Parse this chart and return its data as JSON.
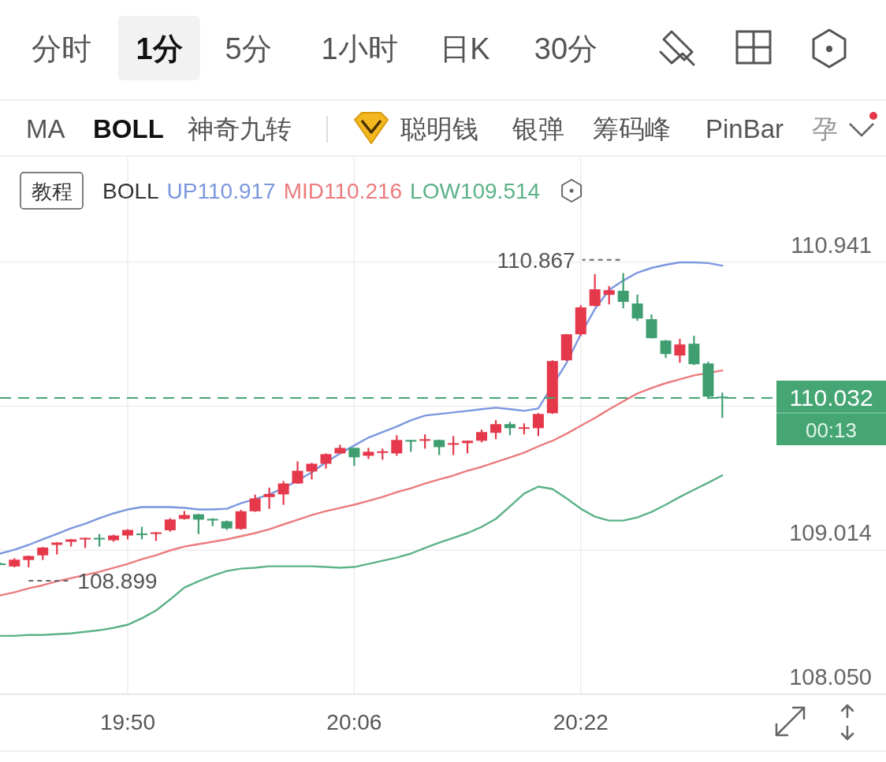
{
  "chart_data": {
    "type": "candlestick",
    "x": [
      19.6833,
      19.7,
      19.7167,
      19.7333,
      19.75,
      19.7667,
      19.7833,
      19.8,
      19.8167,
      19.8333,
      19.85,
      19.8667,
      19.8833,
      19.9,
      19.9167,
      19.9333,
      19.95,
      19.9667,
      19.9833,
      20.0,
      20.0167,
      20.0333,
      20.05,
      20.0667,
      20.0833,
      20.1,
      20.1167,
      20.1333,
      20.15,
      20.1667,
      20.1833,
      20.2,
      20.2167,
      20.2333,
      20.25,
      20.2667,
      20.2833,
      20.3,
      20.3167,
      20.3333,
      20.35,
      20.3667,
      20.3833,
      20.4,
      20.4167,
      20.4333,
      20.45,
      20.4667,
      20.4833,
      20.5,
      20.5167,
      20.5333
    ],
    "ohlc": [
      [
        108.925,
        108.93,
        108.915,
        108.918
      ],
      [
        108.905,
        108.96,
        108.9,
        108.95
      ],
      [
        108.948,
        108.978,
        108.899,
        108.975
      ],
      [
        108.979,
        109.035,
        108.948,
        109.031
      ],
      [
        109.049,
        109.067,
        108.985,
        109.065
      ],
      [
        109.07,
        109.088,
        109.038,
        109.086
      ],
      [
        109.086,
        109.098,
        109.028,
        109.096
      ],
      [
        109.096,
        109.122,
        109.038,
        109.093
      ],
      [
        109.08,
        109.117,
        109.07,
        109.112
      ],
      [
        109.112,
        109.154,
        109.086,
        109.149
      ],
      [
        109.125,
        109.17,
        109.086,
        109.12
      ],
      [
        109.123,
        109.135,
        109.075,
        109.133
      ],
      [
        109.147,
        109.228,
        109.138,
        109.219
      ],
      [
        109.223,
        109.276,
        109.218,
        109.249
      ],
      [
        109.254,
        109.256,
        109.122,
        109.218
      ],
      [
        109.223,
        109.228,
        109.175,
        109.213
      ],
      [
        109.207,
        109.212,
        109.149,
        109.159
      ],
      [
        109.156,
        109.283,
        109.15,
        109.274
      ],
      [
        109.274,
        109.385,
        109.27,
        109.36
      ],
      [
        109.369,
        109.432,
        109.29,
        109.39
      ],
      [
        109.387,
        109.476,
        109.317,
        109.46
      ],
      [
        109.46,
        109.608,
        109.458,
        109.545
      ],
      [
        109.54,
        109.598,
        109.487,
        109.592
      ],
      [
        109.592,
        109.661,
        109.56,
        109.656
      ],
      [
        109.661,
        109.719,
        109.66,
        109.698
      ],
      [
        109.698,
        109.7,
        109.577,
        109.635
      ],
      [
        109.645,
        109.698,
        109.624,
        109.672
      ],
      [
        109.67,
        109.693,
        109.619,
        109.675
      ],
      [
        109.661,
        109.783,
        109.645,
        109.751
      ],
      [
        109.751,
        109.753,
        109.672,
        109.74
      ],
      [
        109.746,
        109.788,
        109.693,
        109.756
      ],
      [
        109.751,
        109.753,
        109.65,
        109.703
      ],
      [
        109.719,
        109.777,
        109.65,
        109.73
      ],
      [
        109.73,
        109.748,
        109.661,
        109.746
      ],
      [
        109.746,
        109.82,
        109.735,
        109.804
      ],
      [
        109.799,
        109.883,
        109.756,
        109.857
      ],
      [
        109.857,
        109.872,
        109.783,
        109.83
      ],
      [
        109.826,
        109.862,
        109.788,
        109.836
      ],
      [
        109.83,
        109.93,
        109.777,
        109.925
      ],
      [
        109.93,
        110.284,
        109.925,
        110.279
      ],
      [
        110.284,
        110.46,
        110.28,
        110.458
      ],
      [
        110.458,
        110.653,
        110.447,
        110.638
      ],
      [
        110.648,
        110.86,
        110.645,
        110.759
      ],
      [
        110.722,
        110.78,
        110.658,
        110.753
      ],
      [
        110.749,
        110.867,
        110.632,
        110.675
      ],
      [
        110.664,
        110.723,
        110.548,
        110.564
      ],
      [
        110.559,
        110.59,
        110.43,
        110.432
      ],
      [
        110.416,
        110.42,
        110.3,
        110.326
      ],
      [
        110.316,
        110.427,
        110.268,
        110.39
      ],
      [
        110.395,
        110.448,
        110.252,
        110.258
      ],
      [
        110.263,
        110.274,
        110.025,
        110.041
      ],
      [
        110.041,
        110.068,
        109.899,
        110.032
      ]
    ],
    "colors": [
      "#3f9e70",
      "#e5384b",
      "#e5384b",
      "#e5384b",
      "#e5384b",
      "#e5384b",
      "#e5384b",
      "#3f9e70",
      "#e5384b",
      "#e5384b",
      "#3f9e70",
      "#e5384b",
      "#e5384b",
      "#e5384b",
      "#3f9e70",
      "#3f9e70",
      "#3f9e70",
      "#e5384b",
      "#e5384b",
      "#e5384b",
      "#e5384b",
      "#e5384b",
      "#e5384b",
      "#e5384b",
      "#e5384b",
      "#3f9e70",
      "#e5384b",
      "#e5384b",
      "#e5384b",
      "#3f9e70",
      "#e5384b",
      "#3f9e70",
      "#e5384b",
      "#e5384b",
      "#e5384b",
      "#e5384b",
      "#3f9e70",
      "#e5384b",
      "#e5384b",
      "#e5384b",
      "#e5384b",
      "#e5384b",
      "#e5384b",
      "#e5384b",
      "#3f9e70",
      "#3f9e70",
      "#3f9e70",
      "#3f9e70",
      "#e5384b",
      "#3f9e70",
      "#3f9e70",
      "#3f9e70"
    ],
    "series": [
      {
        "name": "UP110.917",
        "type": "line",
        "color": "#7b97de",
        "x": [
          19.6833,
          19.7,
          19.7167,
          19.7333,
          19.75,
          19.7667,
          19.7833,
          19.8,
          19.8167,
          19.8333,
          19.85,
          19.8667,
          19.8833,
          19.9,
          19.9167,
          19.9333,
          19.95,
          19.9667,
          19.9833,
          20.0,
          20.0167,
          20.05,
          20.0667,
          20.0833,
          20.1,
          20.1167,
          20.1333,
          20.15,
          20.1667,
          20.1833,
          20.2,
          20.2167,
          20.2333,
          20.25,
          20.2667,
          20.2833,
          20.3,
          20.3167,
          20.35,
          20.3667,
          20.3833,
          20.4,
          20.4167,
          20.4333,
          20.45,
          20.4667,
          20.4833,
          20.5,
          20.5167,
          20.5333
        ],
        "values": [
          108.991,
          109.017,
          109.049,
          109.086,
          109.122,
          109.16,
          109.191,
          109.228,
          109.26,
          109.286,
          109.302,
          109.302,
          109.302,
          109.297,
          109.286,
          109.286,
          109.291,
          109.328,
          109.355,
          109.387,
          109.428,
          109.534,
          109.603,
          109.661,
          109.714,
          109.767,
          109.804,
          109.84,
          109.883,
          109.914,
          109.925,
          109.935,
          109.946,
          109.957,
          109.967,
          109.957,
          109.946,
          109.962,
          110.268,
          110.458,
          110.627,
          110.754,
          110.817,
          110.87,
          110.902,
          110.923,
          110.939,
          110.939,
          110.934,
          110.917
        ]
      },
      {
        "name": "MID110.216",
        "type": "line",
        "color": "#ec7b7d",
        "x": [
          19.6833,
          19.7,
          19.7167,
          19.7333,
          19.75,
          19.7667,
          19.7833,
          19.8,
          19.8167,
          19.8333,
          19.85,
          19.8667,
          19.8833,
          19.9,
          19.9167,
          19.9333,
          19.95,
          19.9667,
          19.9833,
          20.0,
          20.0167,
          20.0333,
          20.05,
          20.0667,
          20.0833,
          20.1,
          20.1167,
          20.1333,
          20.15,
          20.1667,
          20.1833,
          20.2,
          20.2167,
          20.2333,
          20.25,
          20.2667,
          20.2833,
          20.3,
          20.3167,
          20.3333,
          20.35,
          20.3667,
          20.3833,
          20.4,
          20.4167,
          20.4333,
          20.45,
          20.4667,
          20.4833,
          20.5,
          20.5333
        ],
        "values": [
          108.711,
          108.732,
          108.758,
          108.779,
          108.806,
          108.827,
          108.848,
          108.869,
          108.895,
          108.922,
          108.953,
          108.98,
          109.012,
          109.038,
          109.054,
          109.07,
          109.086,
          109.107,
          109.128,
          109.154,
          109.186,
          109.217,
          109.249,
          109.275,
          109.296,
          109.318,
          109.344,
          109.37,
          109.402,
          109.428,
          109.46,
          109.487,
          109.513,
          109.545,
          109.571,
          109.603,
          109.634,
          109.666,
          109.708,
          109.745,
          109.793,
          109.846,
          109.898,
          109.956,
          110.01,
          110.062,
          110.099,
          110.131,
          110.157,
          110.183,
          110.216
        ]
      },
      {
        "name": "LOW109.514",
        "type": "line",
        "color": "#5cb287",
        "values": [
          108.441,
          108.441,
          108.447,
          108.447,
          108.452,
          108.457,
          108.468,
          108.478,
          108.494,
          108.515,
          108.558,
          108.61,
          108.684,
          108.764,
          108.806,
          108.843,
          108.874,
          108.89,
          108.896,
          108.906,
          108.906,
          108.906,
          108.906,
          108.901,
          108.896,
          108.901,
          108.922,
          108.943,
          108.964,
          108.991,
          109.028,
          109.064,
          109.096,
          109.128,
          109.17,
          109.223,
          109.307,
          109.392,
          109.439,
          109.423,
          109.36,
          109.291,
          109.238,
          109.212,
          109.212,
          109.233,
          109.27,
          109.318,
          109.37,
          109.418,
          109.465,
          109.514
        ]
      }
    ],
    "xlim": [
      19.683,
      20.726
    ],
    "ylim": [
      108.05,
      111.64
    ],
    "xticks": [
      {
        "value": 19.8333,
        "label": "19:50"
      },
      {
        "value": 20.1,
        "label": "20:06"
      },
      {
        "value": 20.3667,
        "label": "20:22"
      }
    ],
    "yticks": [
      110.941,
      {
        "value": 109.977,
        "label": null
      },
      109.014,
      {
        "value": 108.05,
        "label": "108.050"
      }
    ],
    "grid": true,
    "legend": "top",
    "legend_title": "BOLL",
    "ref_lines": [
      {
        "axis": "y",
        "value": 110.032,
        "label": "110.032",
        "color": "#45a573",
        "line_style": "dashed"
      }
    ],
    "annotations": [
      "分时",
      "1分",
      "5分",
      "1小时",
      "日K",
      "30分",
      "MA",
      "BOLL",
      "神奇九转",
      "聪明钱",
      "银弹",
      "筹码峰",
      "PinBar",
      "孕",
      "教程",
      "00:13",
      {
        "text": "110.867",
        "x": 20.4167,
        "y": 110.867
      },
      {
        "text": "108.899",
        "x": 19.7167,
        "y": 108.899
      }
    ]
  }
}
